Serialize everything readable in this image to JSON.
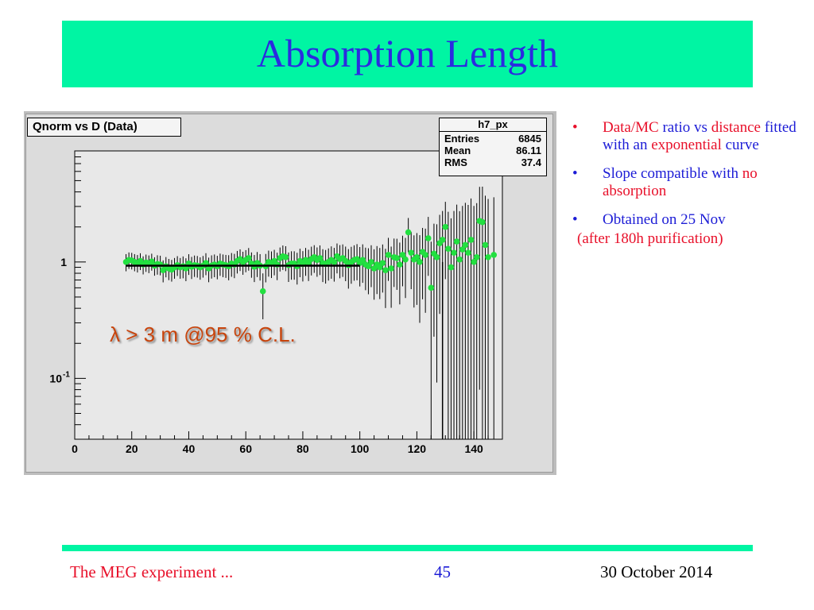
{
  "slide": {
    "title": "Absorption Length"
  },
  "plot": {
    "hist_title": "Qnorm vs D (Data)",
    "stats": {
      "name": "h7_px",
      "rows": [
        {
          "label": "Entries",
          "value": "6845"
        },
        {
          "label": "Mean",
          "value": "86.11"
        },
        {
          "label": "RMS",
          "value": "37.4"
        }
      ]
    },
    "annotation": "λ  > 3 m @95 % C.L."
  },
  "chart_data": {
    "type": "scatter",
    "title": "Qnorm vs D (Data)",
    "xlabel": "",
    "ylabel": "",
    "xlim": [
      0,
      150
    ],
    "ylim": [
      0.03,
      9
    ],
    "yscale": "log",
    "grid": false,
    "x_ticks": [
      "0",
      "20",
      "40",
      "60",
      "80",
      "100",
      "120",
      "140"
    ],
    "y_tick_labels": {
      "one": "1",
      "tenth_base": "10",
      "tenth_exp": "-1"
    },
    "fit": {
      "type": "exponential",
      "x_range": [
        18,
        100
      ],
      "y": 0.93
    },
    "points": [
      [
        18,
        1.0,
        0.12
      ],
      [
        19,
        1.04,
        0.12
      ],
      [
        20,
        1.03,
        0.12
      ],
      [
        21,
        1.0,
        0.12
      ],
      [
        22,
        0.98,
        0.12
      ],
      [
        23,
        1.02,
        0.12
      ],
      [
        24,
        0.95,
        0.12
      ],
      [
        25,
        0.99,
        0.12
      ],
      [
        26,
        0.97,
        0.12
      ],
      [
        27,
        1.01,
        0.12
      ],
      [
        28,
        0.93,
        0.12
      ],
      [
        29,
        0.96,
        0.13
      ],
      [
        30,
        0.95,
        0.13
      ],
      [
        31,
        0.85,
        0.13
      ],
      [
        32,
        0.92,
        0.13
      ],
      [
        33,
        0.88,
        0.13
      ],
      [
        34,
        0.86,
        0.13
      ],
      [
        35,
        0.9,
        0.13
      ],
      [
        36,
        0.94,
        0.13
      ],
      [
        37,
        0.9,
        0.13
      ],
      [
        38,
        0.92,
        0.14
      ],
      [
        39,
        0.88,
        0.14
      ],
      [
        40,
        0.97,
        0.14
      ],
      [
        41,
        0.91,
        0.14
      ],
      [
        42,
        0.94,
        0.14
      ],
      [
        43,
        0.93,
        0.14
      ],
      [
        44,
        0.9,
        0.14
      ],
      [
        45,
        0.93,
        0.14
      ],
      [
        46,
        0.98,
        0.15
      ],
      [
        47,
        0.88,
        0.15
      ],
      [
        48,
        0.93,
        0.15
      ],
      [
        49,
        0.95,
        0.15
      ],
      [
        50,
        0.92,
        0.15
      ],
      [
        51,
        0.97,
        0.15
      ],
      [
        52,
        0.95,
        0.15
      ],
      [
        53,
        0.94,
        0.15
      ],
      [
        54,
        0.92,
        0.16
      ],
      [
        55,
        0.97,
        0.16
      ],
      [
        56,
        0.95,
        0.16
      ],
      [
        57,
        1.02,
        0.16
      ],
      [
        58,
        1.06,
        0.16
      ],
      [
        59,
        1.0,
        0.16
      ],
      [
        60,
        1.04,
        0.16
      ],
      [
        61,
        1.08,
        0.17
      ],
      [
        62,
        0.97,
        0.17
      ],
      [
        63,
        0.91,
        0.17
      ],
      [
        64,
        0.98,
        0.17
      ],
      [
        65,
        0.93,
        0.17
      ],
      [
        66,
        0.56,
        0.17
      ],
      [
        67,
        0.92,
        0.18
      ],
      [
        68,
        1.0,
        0.18
      ],
      [
        69,
        0.98,
        0.18
      ],
      [
        70,
        1.02,
        0.18
      ],
      [
        71,
        0.95,
        0.18
      ],
      [
        72,
        1.08,
        0.18
      ],
      [
        73,
        1.12,
        0.19
      ],
      [
        74,
        1.1,
        0.19
      ],
      [
        75,
        0.94,
        0.19
      ],
      [
        76,
        0.97,
        0.19
      ],
      [
        77,
        0.97,
        0.19
      ],
      [
        78,
        0.92,
        0.2
      ],
      [
        79,
        1.02,
        0.2
      ],
      [
        80,
        0.96,
        0.2
      ],
      [
        81,
        1.04,
        0.2
      ],
      [
        82,
        0.98,
        0.21
      ],
      [
        83,
        1.06,
        0.21
      ],
      [
        84,
        1.1,
        0.21
      ],
      [
        85,
        1.04,
        0.21
      ],
      [
        86,
        1.08,
        0.22
      ],
      [
        87,
        0.98,
        0.22
      ],
      [
        88,
        0.96,
        0.22
      ],
      [
        89,
        1.0,
        0.22
      ],
      [
        90,
        1.04,
        0.23
      ],
      [
        91,
        1.0,
        0.23
      ],
      [
        92,
        1.12,
        0.23
      ],
      [
        93,
        1.06,
        0.24
      ],
      [
        94,
        1.08,
        0.24
      ],
      [
        95,
        1.02,
        0.24
      ],
      [
        96,
        0.94,
        0.25
      ],
      [
        97,
        1.0,
        0.25
      ],
      [
        98,
        1.04,
        0.25
      ],
      [
        99,
        1.06,
        0.26
      ],
      [
        100,
        0.98,
        0.26
      ],
      [
        101,
        1.04,
        0.27
      ],
      [
        102,
        0.95,
        0.27
      ],
      [
        103,
        0.92,
        0.28
      ],
      [
        104,
        1.0,
        0.28
      ],
      [
        105,
        0.88,
        0.29
      ],
      [
        106,
        0.95,
        0.3
      ],
      [
        107,
        0.9,
        0.3
      ],
      [
        108,
        0.98,
        0.31
      ],
      [
        109,
        0.85,
        0.32
      ],
      [
        110,
        1.15,
        0.33
      ],
      [
        111,
        0.88,
        0.34
      ],
      [
        112,
        1.1,
        0.35
      ],
      [
        113,
        1.08,
        0.36
      ],
      [
        114,
        0.95,
        0.37
      ],
      [
        115,
        1.15,
        0.38
      ],
      [
        116,
        1.05,
        0.4
      ],
      [
        117,
        1.8,
        0.42
      ],
      [
        118,
        1.2,
        0.44
      ],
      [
        119,
        1.05,
        0.46
      ],
      [
        120,
        1.1,
        0.48
      ],
      [
        121,
        1.0,
        0.5
      ],
      [
        122,
        1.22,
        0.53
      ],
      [
        123,
        1.15,
        0.56
      ],
      [
        124,
        1.6,
        0.6
      ],
      [
        125,
        0.6,
        0.64
      ],
      [
        126,
        1.18,
        0.68
      ],
      [
        127,
        1.1,
        0.72
      ],
      [
        128,
        1.45,
        0.78
      ],
      [
        129,
        1.55,
        0.85
      ],
      [
        130,
        2.0,
        0.92
      ],
      [
        131,
        1.3,
        1.0
      ],
      [
        132,
        0.9,
        1.05
      ],
      [
        133,
        1.2,
        1.1
      ],
      [
        134,
        1.5,
        1.15
      ],
      [
        135,
        1.05,
        1.2
      ],
      [
        136,
        1.28,
        1.25
      ],
      [
        137,
        1.4,
        1.3
      ],
      [
        138,
        1.2,
        1.35
      ],
      [
        139,
        1.55,
        1.4
      ],
      [
        140,
        1.0,
        1.45
      ],
      [
        141,
        1.1,
        1.5
      ],
      [
        142,
        2.25,
        1.55
      ],
      [
        143,
        2.2,
        1.6
      ],
      [
        144,
        1.4,
        1.65
      ],
      [
        145,
        1.1,
        1.7
      ],
      [
        147,
        1.15,
        1.75
      ]
    ]
  },
  "bullets": [
    {
      "parts": [
        {
          "text": "Data/MC ",
          "color": "red"
        },
        {
          "text": "ratio vs",
          "color": "blue"
        },
        {
          "text": " distance ",
          "color": "red"
        },
        {
          "text": "fitted with an ",
          "color": "blue"
        },
        {
          "text": "exponential ",
          "color": "red"
        },
        {
          "text": "curve",
          "color": "blue"
        }
      ]
    },
    {
      "parts": [
        {
          "text": "Slope compatible with ",
          "color": "blue"
        },
        {
          "text": "no absorption",
          "color": "red"
        }
      ]
    },
    {
      "parts": [
        {
          "text": "Obtained on 25 Nov",
          "color": "blue"
        }
      ]
    }
  ],
  "bullet_continuation": "(after 180h purification)",
  "footer": {
    "left": "The MEG experiment ...",
    "center": "45",
    "right": "30 October 2014"
  },
  "colors": {
    "title_bar": "#00f5a3",
    "title_text": "#2b2be0",
    "marker": "#22e040",
    "annotation": "#c8440c",
    "red": "#e8102a",
    "blue": "#1c1cd6"
  }
}
